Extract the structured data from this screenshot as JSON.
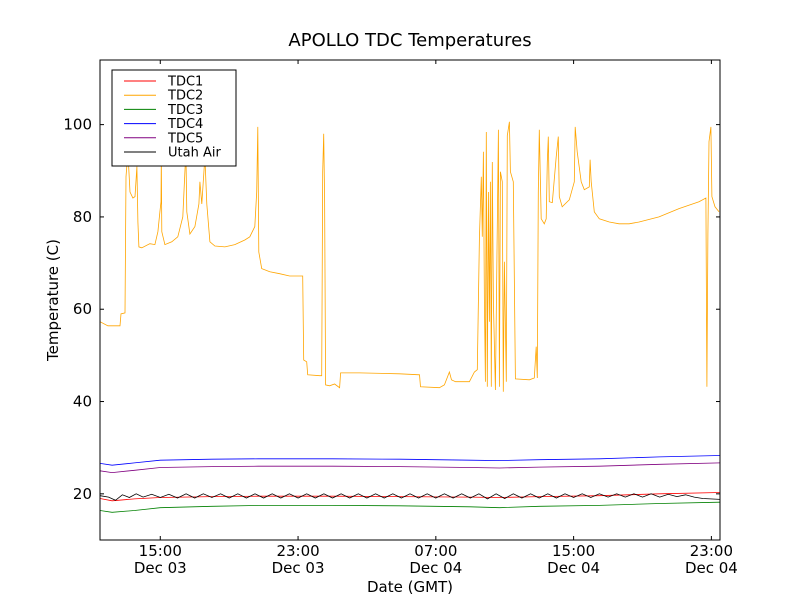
{
  "chart_data": {
    "type": "line",
    "title": "APOLLO TDC Temperatures",
    "xlabel": "Date (GMT)",
    "ylabel": "Temperature (C)",
    "x_units": "hours since Dec 03 00:00 GMT",
    "xlim": [
      11.5,
      47.5
    ],
    "ylim": [
      10,
      114
    ],
    "grid": false,
    "legend_placement": "top-left",
    "yticks": [
      {
        "value": 20,
        "label": "20"
      },
      {
        "value": 40,
        "label": "40"
      },
      {
        "value": 60,
        "label": "60"
      },
      {
        "value": 80,
        "label": "80"
      },
      {
        "value": 100,
        "label": "100"
      }
    ],
    "xticks": [
      {
        "value": 15,
        "time": "15:00",
        "date": "Dec 03"
      },
      {
        "value": 23,
        "time": "23:00",
        "date": "Dec 03"
      },
      {
        "value": 31,
        "time": "07:00",
        "date": "Dec 04"
      },
      {
        "value": 39,
        "time": "15:00",
        "date": "Dec 04"
      },
      {
        "value": 47,
        "time": "23:00",
        "date": "Dec 04"
      }
    ],
    "series": [
      {
        "name": "TDC1",
        "color": "#ff0000",
        "points": [
          [
            11.5,
            19.0
          ],
          [
            12.2,
            18.5
          ],
          [
            13.5,
            18.9
          ],
          [
            15.0,
            19.2
          ],
          [
            18,
            19.4
          ],
          [
            20.7,
            19.5
          ],
          [
            25,
            19.5
          ],
          [
            28.9,
            19.4
          ],
          [
            33,
            19.3
          ],
          [
            34.7,
            19.2
          ],
          [
            37,
            19.4
          ],
          [
            40.5,
            19.6
          ],
          [
            44,
            20.0
          ],
          [
            47.5,
            20.3
          ]
        ]
      },
      {
        "name": "TDC2",
        "color": "#ffa500",
        "points": [
          [
            11.5,
            57.3
          ],
          [
            11.96,
            56.4
          ],
          [
            12.66,
            56.4
          ],
          [
            12.72,
            59.0
          ],
          [
            12.95,
            59.2
          ],
          [
            13.01,
            88.7
          ],
          [
            13.12,
            94.1
          ],
          [
            13.24,
            85.4
          ],
          [
            13.41,
            84.1
          ],
          [
            13.53,
            84.4
          ],
          [
            13.64,
            90.9
          ],
          [
            13.7,
            78.9
          ],
          [
            13.76,
            73.5
          ],
          [
            13.93,
            73.3
          ],
          [
            14.4,
            74.2
          ],
          [
            14.69,
            74.0
          ],
          [
            14.86,
            76.8
          ],
          [
            14.98,
            81.1
          ],
          [
            15.04,
            83.3
          ],
          [
            15.06,
            93.0
          ],
          [
            15.09,
            76.8
          ],
          [
            15.27,
            74.0
          ],
          [
            15.67,
            74.6
          ],
          [
            16.02,
            75.7
          ],
          [
            16.31,
            80.0
          ],
          [
            16.43,
            89.8
          ],
          [
            16.49,
            94.1
          ],
          [
            16.54,
            81.1
          ],
          [
            16.72,
            76.3
          ],
          [
            17.01,
            77.9
          ],
          [
            17.24,
            82.8
          ],
          [
            17.3,
            87.6
          ],
          [
            17.41,
            82.8
          ],
          [
            17.59,
            93.0
          ],
          [
            17.7,
            82.8
          ],
          [
            17.88,
            74.6
          ],
          [
            18.17,
            73.7
          ],
          [
            18.75,
            73.5
          ],
          [
            19.33,
            74.0
          ],
          [
            19.91,
            75.0
          ],
          [
            20.2,
            75.7
          ],
          [
            20.49,
            77.9
          ],
          [
            20.6,
            85.4
          ],
          [
            20.66,
            99.5
          ],
          [
            20.72,
            72.4
          ],
          [
            20.89,
            68.8
          ],
          [
            21.36,
            68.1
          ],
          [
            21.93,
            67.7
          ],
          [
            22.51,
            67.2
          ],
          [
            23.27,
            67.2
          ],
          [
            23.33,
            49.0
          ],
          [
            23.5,
            48.6
          ],
          [
            23.56,
            45.8
          ],
          [
            24.25,
            45.6
          ],
          [
            24.37,
            45.6
          ],
          [
            24.43,
            89.8
          ],
          [
            24.49,
            98.0
          ],
          [
            24.54,
            84.1
          ],
          [
            24.6,
            43.6
          ],
          [
            24.83,
            43.4
          ],
          [
            25.12,
            43.8
          ],
          [
            25.41,
            43.0
          ],
          [
            25.47,
            46.2
          ],
          [
            26.57,
            46.2
          ],
          [
            28.89,
            46.0
          ],
          [
            30.05,
            45.8
          ],
          [
            30.11,
            43.2
          ],
          [
            31.21,
            43.0
          ],
          [
            31.5,
            43.6
          ],
          [
            31.79,
            46.4
          ],
          [
            31.91,
            44.7
          ],
          [
            32.14,
            44.3
          ],
          [
            32.95,
            44.3
          ],
          [
            33.24,
            46.4
          ],
          [
            33.41,
            46.9
          ],
          [
            33.53,
            75.3
          ],
          [
            33.64,
            88.7
          ],
          [
            33.7,
            75.7
          ],
          [
            33.76,
            94.1
          ],
          [
            33.82,
            61.6
          ],
          [
            33.88,
            44.3
          ],
          [
            33.93,
            98.4
          ],
          [
            33.99,
            43.2
          ],
          [
            34.05,
            85.4
          ],
          [
            34.11,
            57.3
          ],
          [
            34.17,
            87.6
          ],
          [
            34.22,
            43.2
          ],
          [
            34.28,
            91.9
          ],
          [
            34.34,
            61.6
          ],
          [
            34.46,
            42.5
          ],
          [
            34.63,
            98.9
          ],
          [
            34.69,
            43.2
          ],
          [
            34.75,
            89.8
          ],
          [
            34.86,
            87.6
          ],
          [
            34.92,
            42.1
          ],
          [
            34.98,
            70.3
          ],
          [
            35.09,
            44.3
          ],
          [
            35.15,
            97.6
          ],
          [
            35.27,
            100.6
          ],
          [
            35.33,
            89.8
          ],
          [
            35.5,
            87.6
          ],
          [
            35.62,
            44.9
          ],
          [
            36.43,
            44.7
          ],
          [
            36.72,
            45.1
          ],
          [
            36.83,
            51.9
          ],
          [
            36.89,
            45.1
          ],
          [
            36.95,
            85.4
          ],
          [
            37.01,
            98.9
          ],
          [
            37.12,
            79.6
          ],
          [
            37.3,
            78.5
          ],
          [
            37.41,
            79.6
          ],
          [
            37.47,
            91.9
          ],
          [
            37.53,
            97.4
          ],
          [
            37.59,
            83.3
          ],
          [
            37.76,
            83.1
          ],
          [
            37.99,
            93.0
          ],
          [
            38.11,
            97.4
          ],
          [
            38.17,
            84.4
          ],
          [
            38.34,
            82.2
          ],
          [
            38.75,
            83.7
          ],
          [
            39.04,
            87.6
          ],
          [
            39.09,
            99.5
          ],
          [
            39.21,
            94.1
          ],
          [
            39.44,
            87.6
          ],
          [
            39.62,
            85.9
          ],
          [
            39.91,
            86.5
          ],
          [
            39.96,
            92.4
          ],
          [
            40.02,
            87.6
          ],
          [
            40.2,
            81.1
          ],
          [
            40.49,
            79.6
          ],
          [
            41.07,
            78.9
          ],
          [
            41.64,
            78.5
          ],
          [
            42.22,
            78.5
          ],
          [
            42.8,
            78.9
          ],
          [
            43.96,
            80.0
          ],
          [
            45.12,
            81.8
          ],
          [
            46.28,
            83.3
          ],
          [
            46.68,
            84.1
          ],
          [
            46.74,
            43.2
          ],
          [
            46.8,
            76.3
          ],
          [
            46.86,
            96.3
          ],
          [
            46.97,
            99.5
          ],
          [
            47.03,
            84.4
          ],
          [
            47.21,
            82.2
          ],
          [
            47.44,
            81.1
          ]
        ]
      },
      {
        "name": "TDC3",
        "color": "#008000",
        "points": [
          [
            11.5,
            16.4
          ],
          [
            12.2,
            16.0
          ],
          [
            13.5,
            16.4
          ],
          [
            15.0,
            17.0
          ],
          [
            18,
            17.3
          ],
          [
            20.7,
            17.5
          ],
          [
            25,
            17.5
          ],
          [
            28.9,
            17.4
          ],
          [
            33,
            17.2
          ],
          [
            34.7,
            17.0
          ],
          [
            37,
            17.3
          ],
          [
            40.5,
            17.5
          ],
          [
            44,
            17.9
          ],
          [
            47.5,
            18.2
          ]
        ]
      },
      {
        "name": "TDC4",
        "color": "#0000ff",
        "points": [
          [
            11.5,
            26.6
          ],
          [
            12.2,
            26.2
          ],
          [
            13.5,
            26.7
          ],
          [
            15.0,
            27.3
          ],
          [
            18,
            27.5
          ],
          [
            20.7,
            27.6
          ],
          [
            25,
            27.6
          ],
          [
            28.9,
            27.5
          ],
          [
            33,
            27.3
          ],
          [
            34.7,
            27.2
          ],
          [
            37,
            27.4
          ],
          [
            40.5,
            27.6
          ],
          [
            44,
            28.0
          ],
          [
            47.5,
            28.3
          ]
        ]
      },
      {
        "name": "TDC5",
        "color": "#800080",
        "points": [
          [
            11.5,
            25.0
          ],
          [
            12.2,
            24.6
          ],
          [
            13.5,
            25.1
          ],
          [
            15.0,
            25.7
          ],
          [
            18,
            25.9
          ],
          [
            20.7,
            26.0
          ],
          [
            25,
            26.0
          ],
          [
            28.9,
            25.9
          ],
          [
            33,
            25.7
          ],
          [
            34.7,
            25.6
          ],
          [
            37,
            25.8
          ],
          [
            40.5,
            26.0
          ],
          [
            44,
            26.4
          ],
          [
            47.5,
            26.7
          ]
        ]
      },
      {
        "name": "Utah Air",
        "color": "#000000",
        "points": [
          [
            11.5,
            19.6
          ],
          [
            12.0,
            19.3
          ],
          [
            12.4,
            18.6
          ],
          [
            12.8,
            19.8
          ],
          [
            13.2,
            19.2
          ],
          [
            13.6,
            20.0
          ],
          [
            14.0,
            19.3
          ],
          [
            14.5,
            19.9
          ],
          [
            15.0,
            19.2
          ],
          [
            15.5,
            19.9
          ],
          [
            16.0,
            19.1
          ],
          [
            16.5,
            20.0
          ],
          [
            17.0,
            19.1
          ],
          [
            17.5,
            20.0
          ],
          [
            18.0,
            19.2
          ],
          [
            18.5,
            20.0
          ],
          [
            19.0,
            19.1
          ],
          [
            19.5,
            20.0
          ],
          [
            20.0,
            19.1
          ],
          [
            20.5,
            20.0
          ],
          [
            21.0,
            19.1
          ],
          [
            21.5,
            20.0
          ],
          [
            22.0,
            19.1
          ],
          [
            22.5,
            20.0
          ],
          [
            23.0,
            19.1
          ],
          [
            23.5,
            20.0
          ],
          [
            24.0,
            19.1
          ],
          [
            24.5,
            20.0
          ],
          [
            25.0,
            19.1
          ],
          [
            25.5,
            20.0
          ],
          [
            26.0,
            19.1
          ],
          [
            26.5,
            20.0
          ],
          [
            27.0,
            19.1
          ],
          [
            27.5,
            20.0
          ],
          [
            28.0,
            19.1
          ],
          [
            28.5,
            20.0
          ],
          [
            29.0,
            19.1
          ],
          [
            29.5,
            20.0
          ],
          [
            30.0,
            19.1
          ],
          [
            30.5,
            20.0
          ],
          [
            31.0,
            19.1
          ],
          [
            31.5,
            20.0
          ],
          [
            32.0,
            19.1
          ],
          [
            32.5,
            20.0
          ],
          [
            33.0,
            19.1
          ],
          [
            33.5,
            20.0
          ],
          [
            34.0,
            18.9
          ],
          [
            34.5,
            20.0
          ],
          [
            35.0,
            19.0
          ],
          [
            35.5,
            20.0
          ],
          [
            36.0,
            19.1
          ],
          [
            36.5,
            20.0
          ],
          [
            37.0,
            19.1
          ],
          [
            37.5,
            20.0
          ],
          [
            38.0,
            19.1
          ],
          [
            38.5,
            20.0
          ],
          [
            39.0,
            19.2
          ],
          [
            39.5,
            20.0
          ],
          [
            40.0,
            19.2
          ],
          [
            40.5,
            20.0
          ],
          [
            41.0,
            19.3
          ],
          [
            41.5,
            20.0
          ],
          [
            42.0,
            19.3
          ],
          [
            42.5,
            20.0
          ],
          [
            43.0,
            19.3
          ],
          [
            43.5,
            20.0
          ],
          [
            44.0,
            19.3
          ],
          [
            44.5,
            19.9
          ],
          [
            45.0,
            19.4
          ],
          [
            45.5,
            19.8
          ],
          [
            46.0,
            19.3
          ],
          [
            46.5,
            19.0
          ],
          [
            47.5,
            18.8
          ]
        ]
      }
    ]
  }
}
